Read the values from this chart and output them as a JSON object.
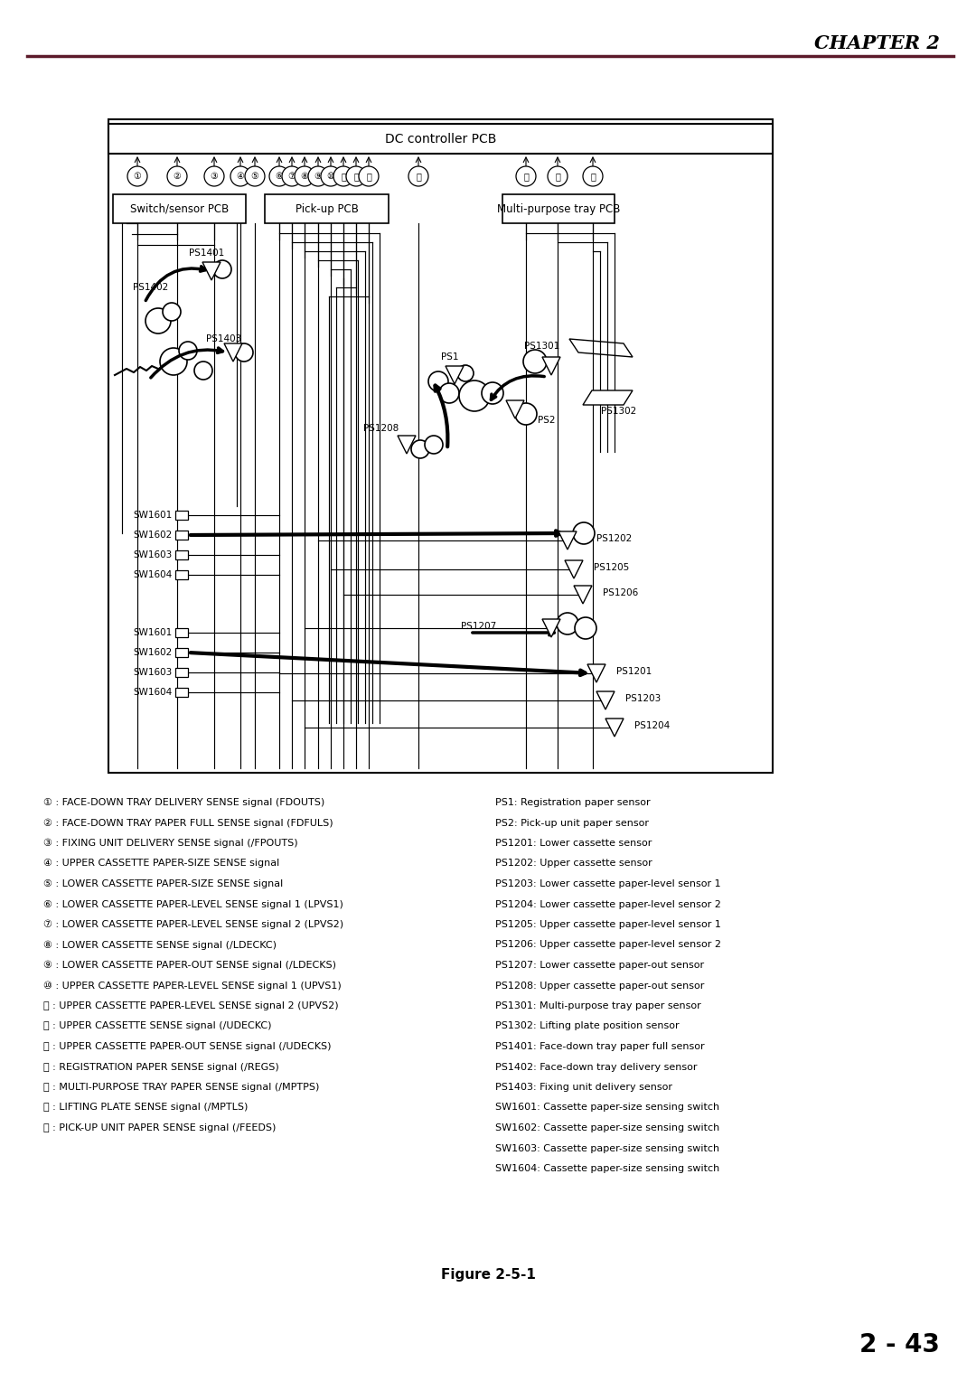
{
  "chapter_title": "CHAPTER 2",
  "page_number": "2 - 43",
  "figure_caption": "Figure 2-5-1",
  "header_line_color": "#5c1a2a",
  "bg_color": "#ffffff",
  "left_legend": [
    "① : FACE-DOWN TRAY DELIVERY SENSE signal (FDOUTS)",
    "② : FACE-DOWN TRAY PAPER FULL SENSE signal (FDFULS)",
    "③ : FIXING UNIT DELIVERY SENSE signal (/FPOUTS)",
    "④ : UPPER CASSETTE PAPER-SIZE SENSE signal",
    "⑤ : LOWER CASSETTE PAPER-SIZE SENSE signal",
    "⑥ : LOWER CASSETTE PAPER-LEVEL SENSE signal 1 (LPVS1)",
    "⑦ : LOWER CASSETTE PAPER-LEVEL SENSE signal 2 (LPVS2)",
    "⑧ : LOWER CASSETTE SENSE signal (/LDECKC)",
    "⑨ : LOWER CASSETTE PAPER-OUT SENSE signal (/LDECKS)",
    "⑩ : UPPER CASSETTE PAPER-LEVEL SENSE signal 1 (UPVS1)",
    "⑪ : UPPER CASSETTE PAPER-LEVEL SENSE signal 2 (UPVS2)",
    "⑫ : UPPER CASSETTE SENSE signal (/UDECKC)",
    "⑬ : UPPER CASSETTE PAPER-OUT SENSE signal (/UDECKS)",
    "⑭ : REGISTRATION PAPER SENSE signal (/REGS)",
    "⑮ : MULTI-PURPOSE TRAY PAPER SENSE signal (/MPTPS)",
    "⑯ : LIFTING PLATE SENSE signal (/MPTLS)",
    "⑰ : PICK-UP UNIT PAPER SENSE signal (/FEEDS)"
  ],
  "right_legend": [
    "PS1: Registration paper sensor",
    "PS2: Pick-up unit paper sensor",
    "PS1201: Lower cassette sensor",
    "PS1202: Upper cassette sensor",
    "PS1203: Lower cassette paper-level sensor 1",
    "PS1204: Lower cassette paper-level sensor 2",
    "PS1205: Upper cassette paper-level sensor 1",
    "PS1206: Upper cassette paper-level sensor 2",
    "PS1207: Lower cassette paper-out sensor",
    "PS1208: Upper cassette paper-out sensor",
    "PS1301: Multi-purpose tray paper sensor",
    "PS1302: Lifting plate position sensor",
    "PS1401: Face-down tray paper full sensor",
    "PS1402: Face-down tray delivery sensor",
    "PS1403: Fixing unit delivery sensor",
    "SW1601: Cassette paper-size sensing switch",
    "SW1602: Cassette paper-size sensing switch",
    "SW1603: Cassette paper-size sensing switch",
    "SW1604: Cassette paper-size sensing switch"
  ]
}
